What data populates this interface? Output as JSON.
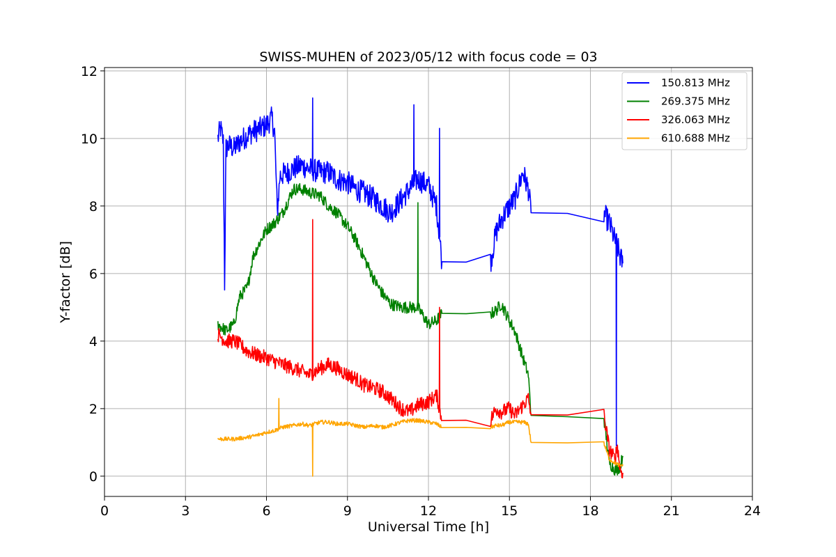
{
  "chart_data": {
    "type": "line",
    "title": "SWISS-MUHEN of 2023/05/12 with focus code = 03",
    "xlabel": "Universal Time [h]",
    "ylabel": "Y-factor [dB]",
    "xlim": [
      0,
      24
    ],
    "ylim": [
      -0.6,
      12.1
    ],
    "xticks": [
      0,
      3,
      6,
      9,
      12,
      15,
      18,
      21,
      24
    ],
    "xtick_labels": [
      "0",
      "3",
      "6",
      "9",
      "12",
      "15",
      "18",
      "21",
      "24"
    ],
    "yticks": [
      0,
      2,
      4,
      6,
      8,
      10,
      12
    ],
    "ytick_labels": [
      "0",
      "2",
      "4",
      "6",
      "8",
      "10",
      "12"
    ],
    "grid": true,
    "legend_position": "top-right",
    "series": [
      {
        "name": "150.813 MHz",
        "color": "#0000ff",
        "x": [
          4.2,
          4.3,
          4.4,
          4.45,
          4.5,
          4.6,
          4.8,
          5.0,
          5.3,
          5.5,
          5.8,
          6.0,
          6.2,
          6.3,
          6.4,
          6.5,
          6.8,
          7.0,
          7.3,
          7.6,
          8.0,
          8.3,
          8.6,
          9.0,
          9.3,
          9.6,
          10.0,
          10.3,
          10.6,
          11.0,
          11.3,
          11.6,
          12.0,
          12.3,
          12.5,
          14.3,
          14.5,
          14.7,
          15.0,
          15.2,
          15.5,
          15.7,
          15.8,
          18.5,
          18.7,
          18.9,
          19.0,
          19.1,
          19.2
        ],
        "y": [
          10.0,
          10.3,
          9.9,
          5.7,
          9.7,
          9.8,
          9.7,
          9.9,
          10.1,
          10.2,
          10.3,
          10.4,
          10.6,
          10.2,
          7.8,
          8.9,
          9.0,
          9.1,
          9.2,
          9.1,
          9.0,
          9.0,
          8.8,
          8.7,
          8.5,
          8.4,
          8.2,
          8.0,
          7.8,
          8.2,
          8.5,
          8.8,
          8.6,
          8.0,
          6.35,
          6.33,
          7.2,
          7.6,
          8.0,
          8.2,
          9.0,
          8.5,
          7.8,
          7.76,
          7.5,
          7.0,
          6.8,
          6.5,
          6.3
        ]
      },
      {
        "name": "269.375 MHz",
        "color": "#008000",
        "x": [
          4.2,
          4.5,
          4.8,
          5.0,
          5.3,
          5.5,
          5.8,
          6.0,
          6.3,
          6.6,
          7.0,
          7.3,
          7.6,
          8.0,
          8.3,
          8.6,
          9.0,
          9.3,
          9.6,
          10.0,
          10.3,
          10.6,
          11.0,
          11.3,
          11.6,
          12.0,
          12.3,
          12.5,
          14.3,
          14.5,
          14.7,
          15.0,
          15.2,
          15.5,
          15.7,
          15.8,
          18.5,
          18.7,
          18.9,
          19.0,
          19.1,
          19.2
        ],
        "y": [
          4.5,
          4.3,
          4.5,
          5.3,
          5.6,
          6.5,
          7.0,
          7.3,
          7.5,
          7.8,
          8.5,
          8.5,
          8.4,
          8.3,
          8.0,
          7.8,
          7.4,
          7.0,
          6.5,
          5.8,
          5.4,
          5.1,
          5.0,
          5.0,
          5.0,
          4.5,
          4.6,
          4.82,
          4.8,
          4.9,
          5.1,
          4.6,
          4.3,
          3.5,
          3.0,
          1.8,
          1.72,
          0.4,
          0.2,
          0.2,
          0.3,
          0.6
        ]
      },
      {
        "name": "326.063 MHz",
        "color": "#ff0000",
        "x": [
          4.2,
          4.5,
          4.8,
          5.0,
          5.3,
          5.6,
          6.0,
          6.3,
          6.6,
          7.0,
          7.3,
          7.6,
          8.0,
          8.3,
          8.6,
          9.0,
          9.3,
          9.6,
          10.0,
          10.3,
          10.6,
          11.0,
          11.3,
          11.6,
          12.0,
          12.3,
          12.5,
          14.3,
          14.5,
          14.7,
          15.0,
          15.2,
          15.5,
          15.7,
          15.8,
          18.5,
          18.7,
          18.9,
          19.0,
          19.1,
          19.2
        ],
        "y": [
          4.2,
          4.0,
          4.0,
          3.9,
          3.7,
          3.6,
          3.5,
          3.4,
          3.3,
          3.2,
          3.1,
          3.0,
          3.2,
          3.3,
          3.2,
          3.0,
          2.9,
          2.7,
          2.6,
          2.5,
          2.3,
          2.0,
          1.9,
          2.1,
          2.2,
          2.4,
          1.65,
          1.66,
          2.0,
          1.9,
          2.0,
          1.8,
          2.1,
          2.3,
          1.82,
          1.8,
          0.8,
          0.5,
          0.9,
          0.2,
          0.1
        ]
      },
      {
        "name": "610.688 MHz",
        "color": "#ffa500",
        "x": [
          4.2,
          4.5,
          4.8,
          5.0,
          5.3,
          5.6,
          6.0,
          6.3,
          6.6,
          7.0,
          7.3,
          7.6,
          8.0,
          8.3,
          8.6,
          9.0,
          9.3,
          9.6,
          10.0,
          10.3,
          10.6,
          11.0,
          11.3,
          11.6,
          12.0,
          12.3,
          12.5,
          14.3,
          14.5,
          14.7,
          15.0,
          15.2,
          15.5,
          15.7,
          15.8,
          18.5,
          18.7,
          18.9,
          19.0,
          19.1,
          19.2
        ],
        "y": [
          1.1,
          1.1,
          1.1,
          1.12,
          1.15,
          1.2,
          1.3,
          1.35,
          1.45,
          1.5,
          1.55,
          1.5,
          1.6,
          1.6,
          1.55,
          1.55,
          1.5,
          1.45,
          1.5,
          1.45,
          1.5,
          1.6,
          1.65,
          1.65,
          1.6,
          1.55,
          1.44,
          1.45,
          1.5,
          1.5,
          1.6,
          1.6,
          1.6,
          1.55,
          1.0,
          0.97,
          0.5,
          0.4,
          0.35,
          0.3,
          0.35
        ]
      }
    ],
    "spikes": [
      {
        "series": 3,
        "x": 6.45,
        "y": 2.3
      },
      {
        "series": 3,
        "x": 7.7,
        "y": 0.0
      },
      {
        "series": 2,
        "x": 7.7,
        "y": 7.6
      },
      {
        "series": 1,
        "x": 11.6,
        "y": 8.1
      },
      {
        "series": 0,
        "x": 11.45,
        "y": 11.0
      },
      {
        "series": 0,
        "x": 12.4,
        "y": 10.3
      },
      {
        "series": 2,
        "x": 12.4,
        "y": 5.0
      },
      {
        "series": 0,
        "x": 7.7,
        "y": 11.2
      },
      {
        "series": 0,
        "x": 18.95,
        "y": 0.9
      }
    ]
  }
}
